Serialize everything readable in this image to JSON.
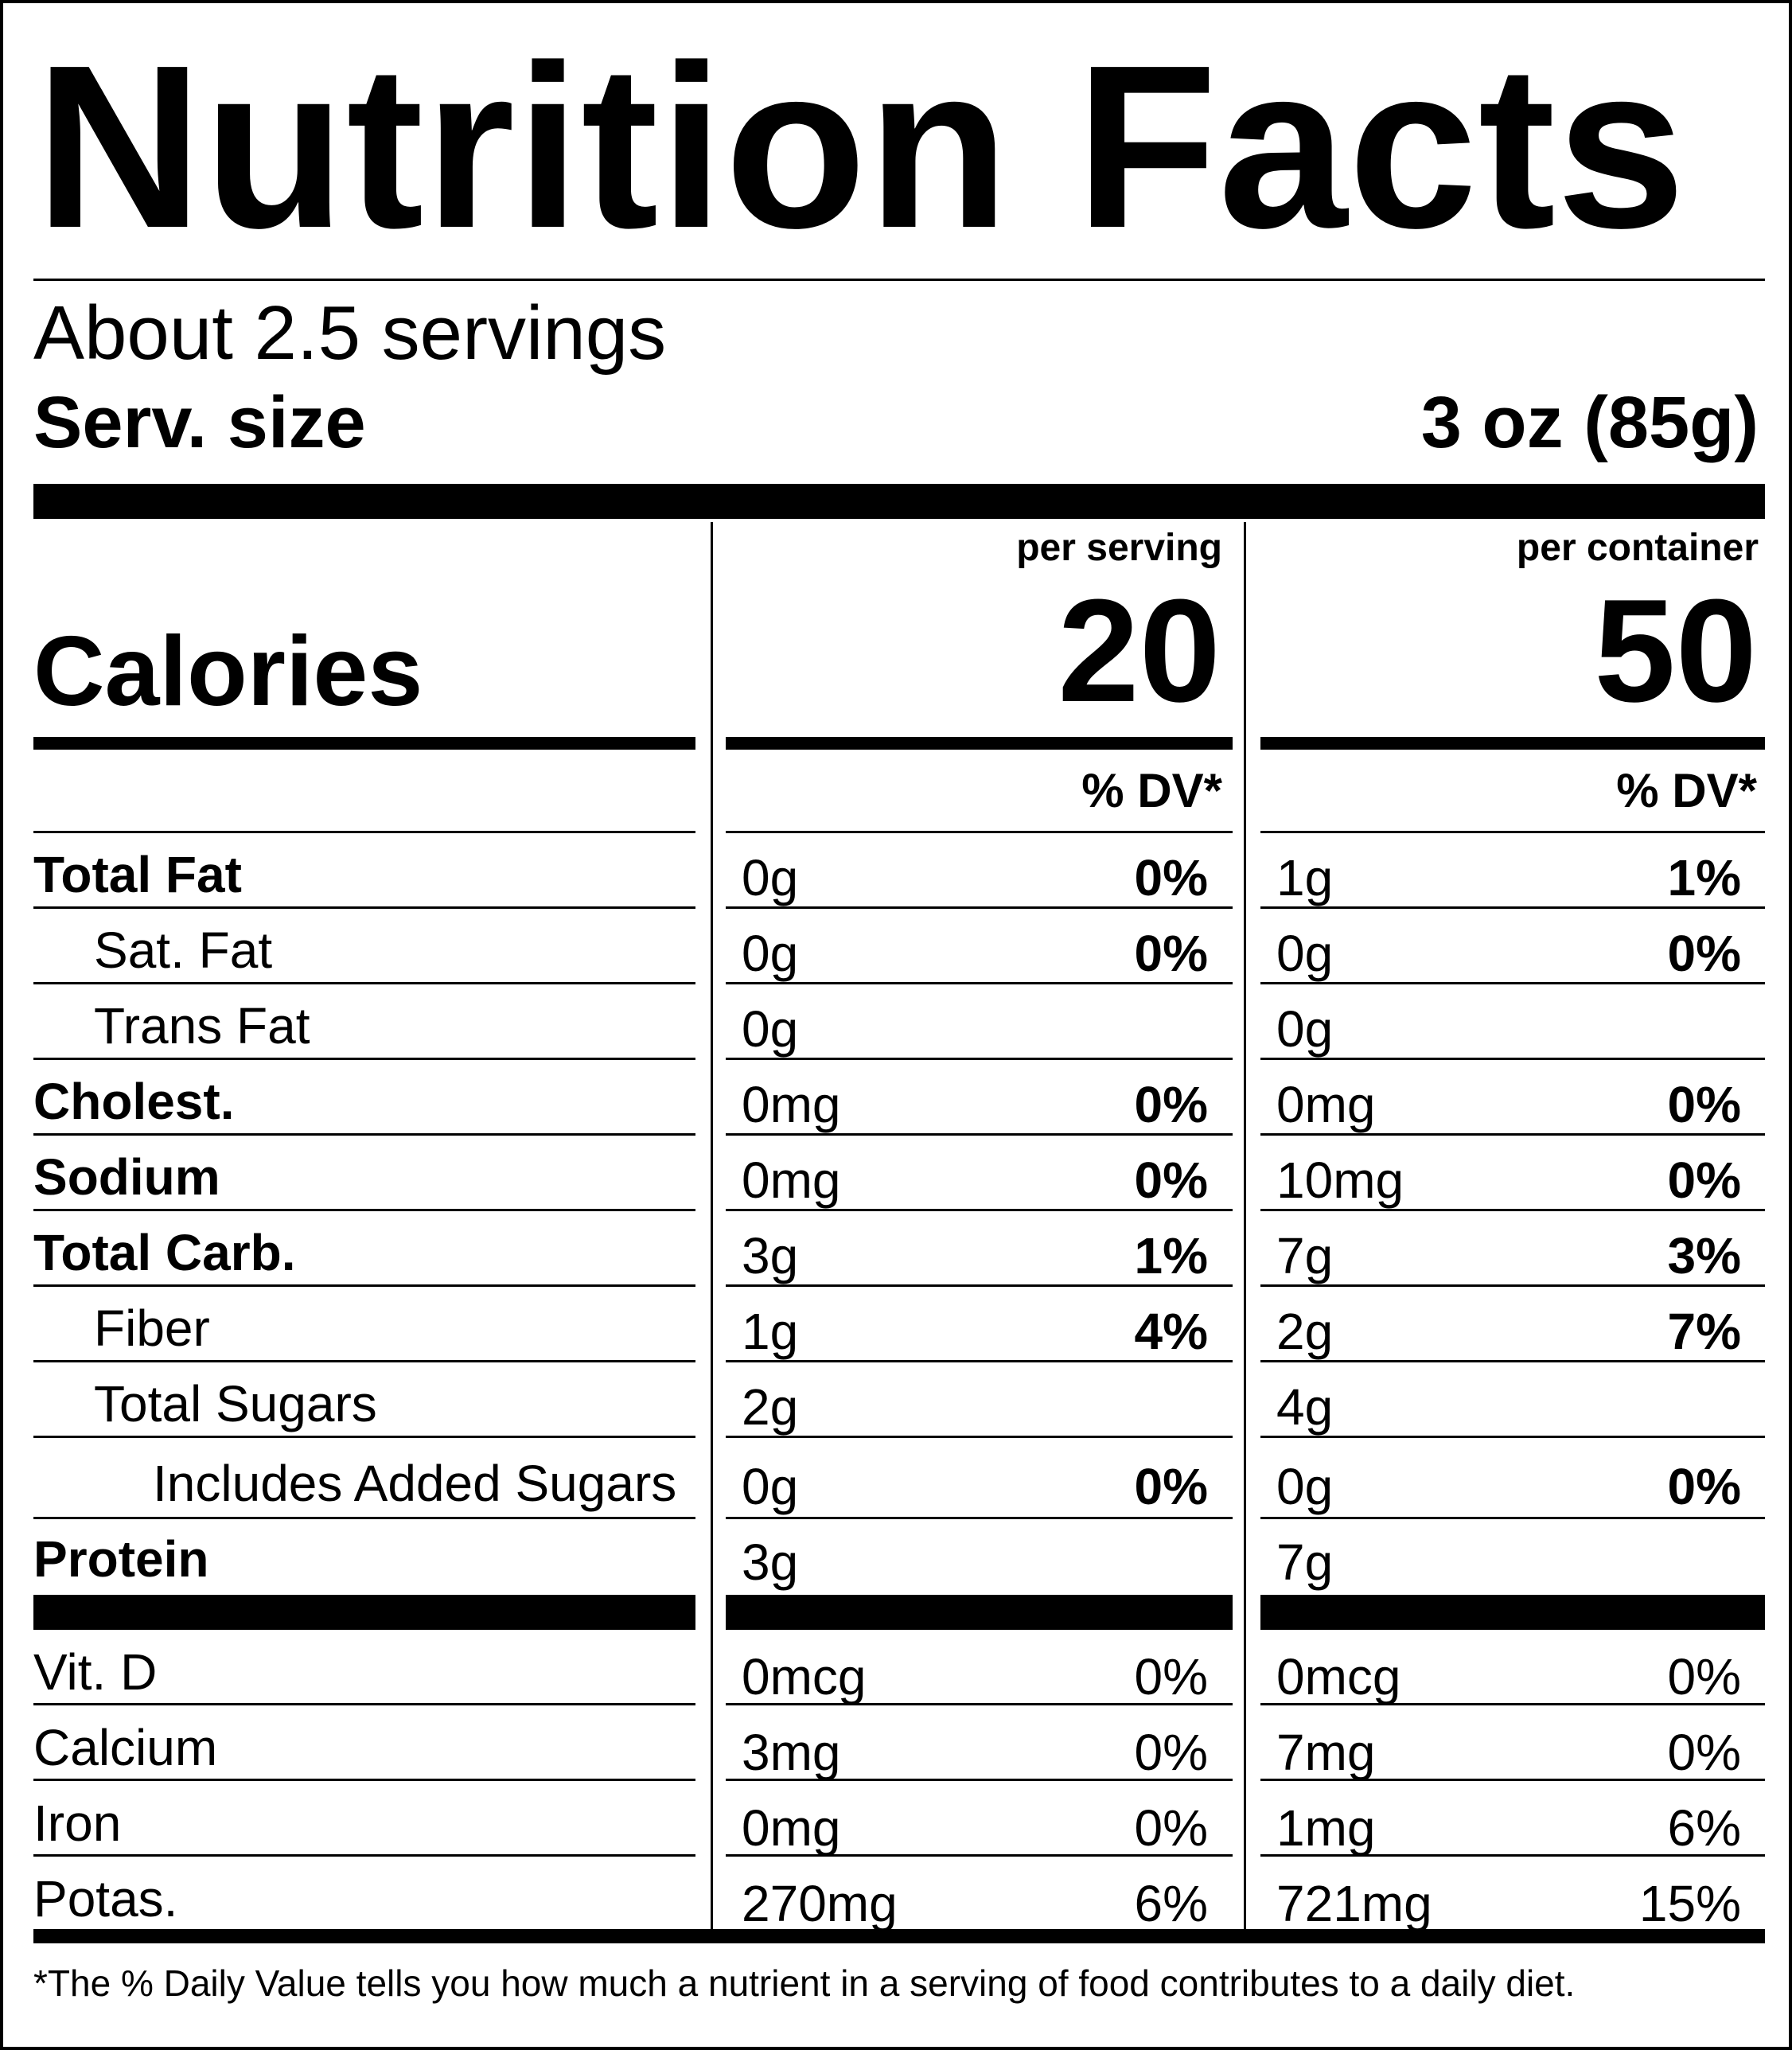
{
  "title": "Nutrition Facts",
  "servings": "About 2.5 servings",
  "serving_size": {
    "label": "Serv. size",
    "value": "3 oz (85g)"
  },
  "columns": [
    {
      "header": "per serving",
      "calories": "20",
      "dv_header": "% DV*"
    },
    {
      "header": "per container",
      "calories": "50",
      "dv_header": "% DV*"
    }
  ],
  "calories_label": "Calories",
  "nutrients": [
    {
      "label": "Total Fat",
      "bold": true,
      "indent": 0,
      "serving": {
        "amount": "0g",
        "dv": "0%"
      },
      "container": {
        "amount": "1g",
        "dv": "1%"
      }
    },
    {
      "label": "Sat. Fat",
      "bold": false,
      "indent": 1,
      "serving": {
        "amount": "0g",
        "dv": "0%"
      },
      "container": {
        "amount": "0g",
        "dv": "0%"
      }
    },
    {
      "label": "Trans Fat",
      "bold": false,
      "indent": 1,
      "serving": {
        "amount": "0g",
        "dv": ""
      },
      "container": {
        "amount": "0g",
        "dv": ""
      }
    },
    {
      "label": "Cholest.",
      "bold": true,
      "indent": 0,
      "serving": {
        "amount": "0mg",
        "dv": "0%"
      },
      "container": {
        "amount": "0mg",
        "dv": "0%"
      }
    },
    {
      "label": "Sodium",
      "bold": true,
      "indent": 0,
      "serving": {
        "amount": "0mg",
        "dv": "0%"
      },
      "container": {
        "amount": "10mg",
        "dv": "0%"
      }
    },
    {
      "label": "Total Carb.",
      "bold": true,
      "indent": 0,
      "serving": {
        "amount": "3g",
        "dv": "1%"
      },
      "container": {
        "amount": "7g",
        "dv": "3%"
      }
    },
    {
      "label": "Fiber",
      "bold": false,
      "indent": 1,
      "serving": {
        "amount": "1g",
        "dv": "4%"
      },
      "container": {
        "amount": "2g",
        "dv": "7%"
      }
    },
    {
      "label": "Total Sugars",
      "bold": false,
      "indent": 1,
      "serving": {
        "amount": "2g",
        "dv": ""
      },
      "container": {
        "amount": "4g",
        "dv": ""
      }
    },
    {
      "label": "Includes Added Sugars",
      "bold": false,
      "indent": 2,
      "serving": {
        "amount": "0g",
        "dv": "0%"
      },
      "container": {
        "amount": "0g",
        "dv": "0%"
      }
    },
    {
      "label": "Protein",
      "bold": true,
      "indent": 0,
      "serving": {
        "amount": "3g",
        "dv": ""
      },
      "container": {
        "amount": "7g",
        "dv": ""
      }
    }
  ],
  "vitamins": [
    {
      "label": "Vit. D",
      "serving": {
        "amount": "0mcg",
        "dv": "0%"
      },
      "container": {
        "amount": "0mcg",
        "dv": "0%"
      }
    },
    {
      "label": "Calcium",
      "serving": {
        "amount": "3mg",
        "dv": "0%"
      },
      "container": {
        "amount": "7mg",
        "dv": "0%"
      }
    },
    {
      "label": "Iron",
      "serving": {
        "amount": "0mg",
        "dv": "0%"
      },
      "container": {
        "amount": "1mg",
        "dv": "6%"
      }
    },
    {
      "label": "Potas.",
      "serving": {
        "amount": "270mg",
        "dv": "6%"
      },
      "container": {
        "amount": "721mg",
        "dv": "15%"
      }
    }
  ],
  "footnote": "*The % Daily Value tells you how much a nutrient in a serving of food contributes to a daily diet."
}
